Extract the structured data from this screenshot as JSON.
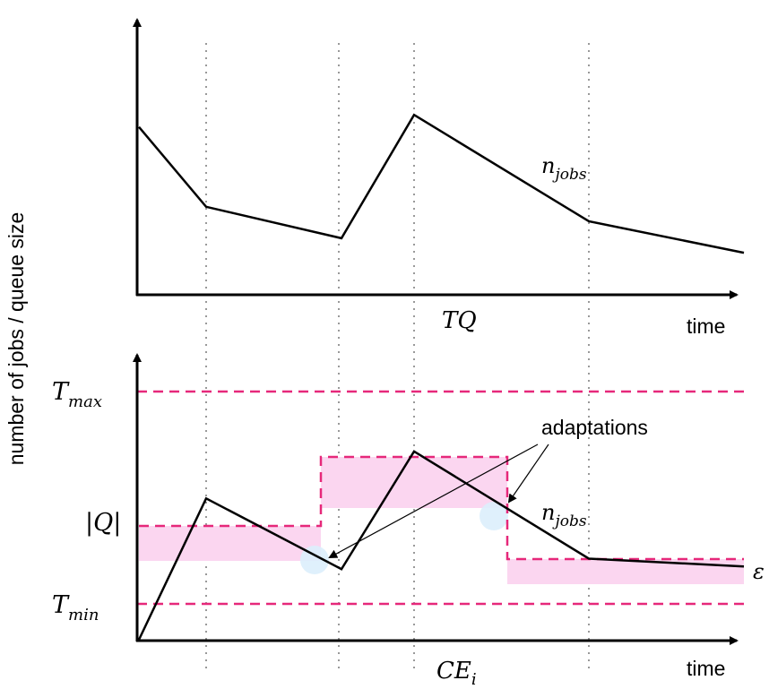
{
  "y_axis_label": "number of jobs / queue size",
  "top_panel": {
    "x_axis_label": "time",
    "series_label": {
      "base": "n",
      "sub": "jobs"
    },
    "axis_marker": "TQ",
    "n_jobs_points": [
      [
        0,
        0.69
      ],
      [
        1,
        0.36
      ],
      [
        2,
        0.23
      ],
      [
        3,
        0.74
      ],
      [
        4,
        0.3
      ],
      [
        5,
        0.17
      ]
    ]
  },
  "bottom_panel": {
    "x_axis_label": "time",
    "series_label": {
      "base": "n",
      "sub": "jobs"
    },
    "axis_marker": {
      "base": "CE",
      "sub": "i"
    },
    "thresholds": [
      {
        "base": "T",
        "sub": "max",
        "value": 0.93
      },
      {
        "base": "T",
        "sub": "min",
        "value": 0.19
      }
    ],
    "queue_label": "|Q|",
    "epsilon_label": "ε",
    "annotation": "adaptations",
    "n_jobs_points": [
      [
        0,
        0.0
      ],
      [
        1,
        0.54
      ],
      [
        2,
        0.27
      ],
      [
        3,
        0.72
      ],
      [
        4,
        0.31
      ],
      [
        5,
        0.28
      ]
    ],
    "queue_levels": [
      0.55,
      0.72,
      0.33
    ],
    "colors": {
      "threshold": "#e6287a",
      "band": "#fbd6f0",
      "adapt_dot": "#dceefc"
    }
  }
}
